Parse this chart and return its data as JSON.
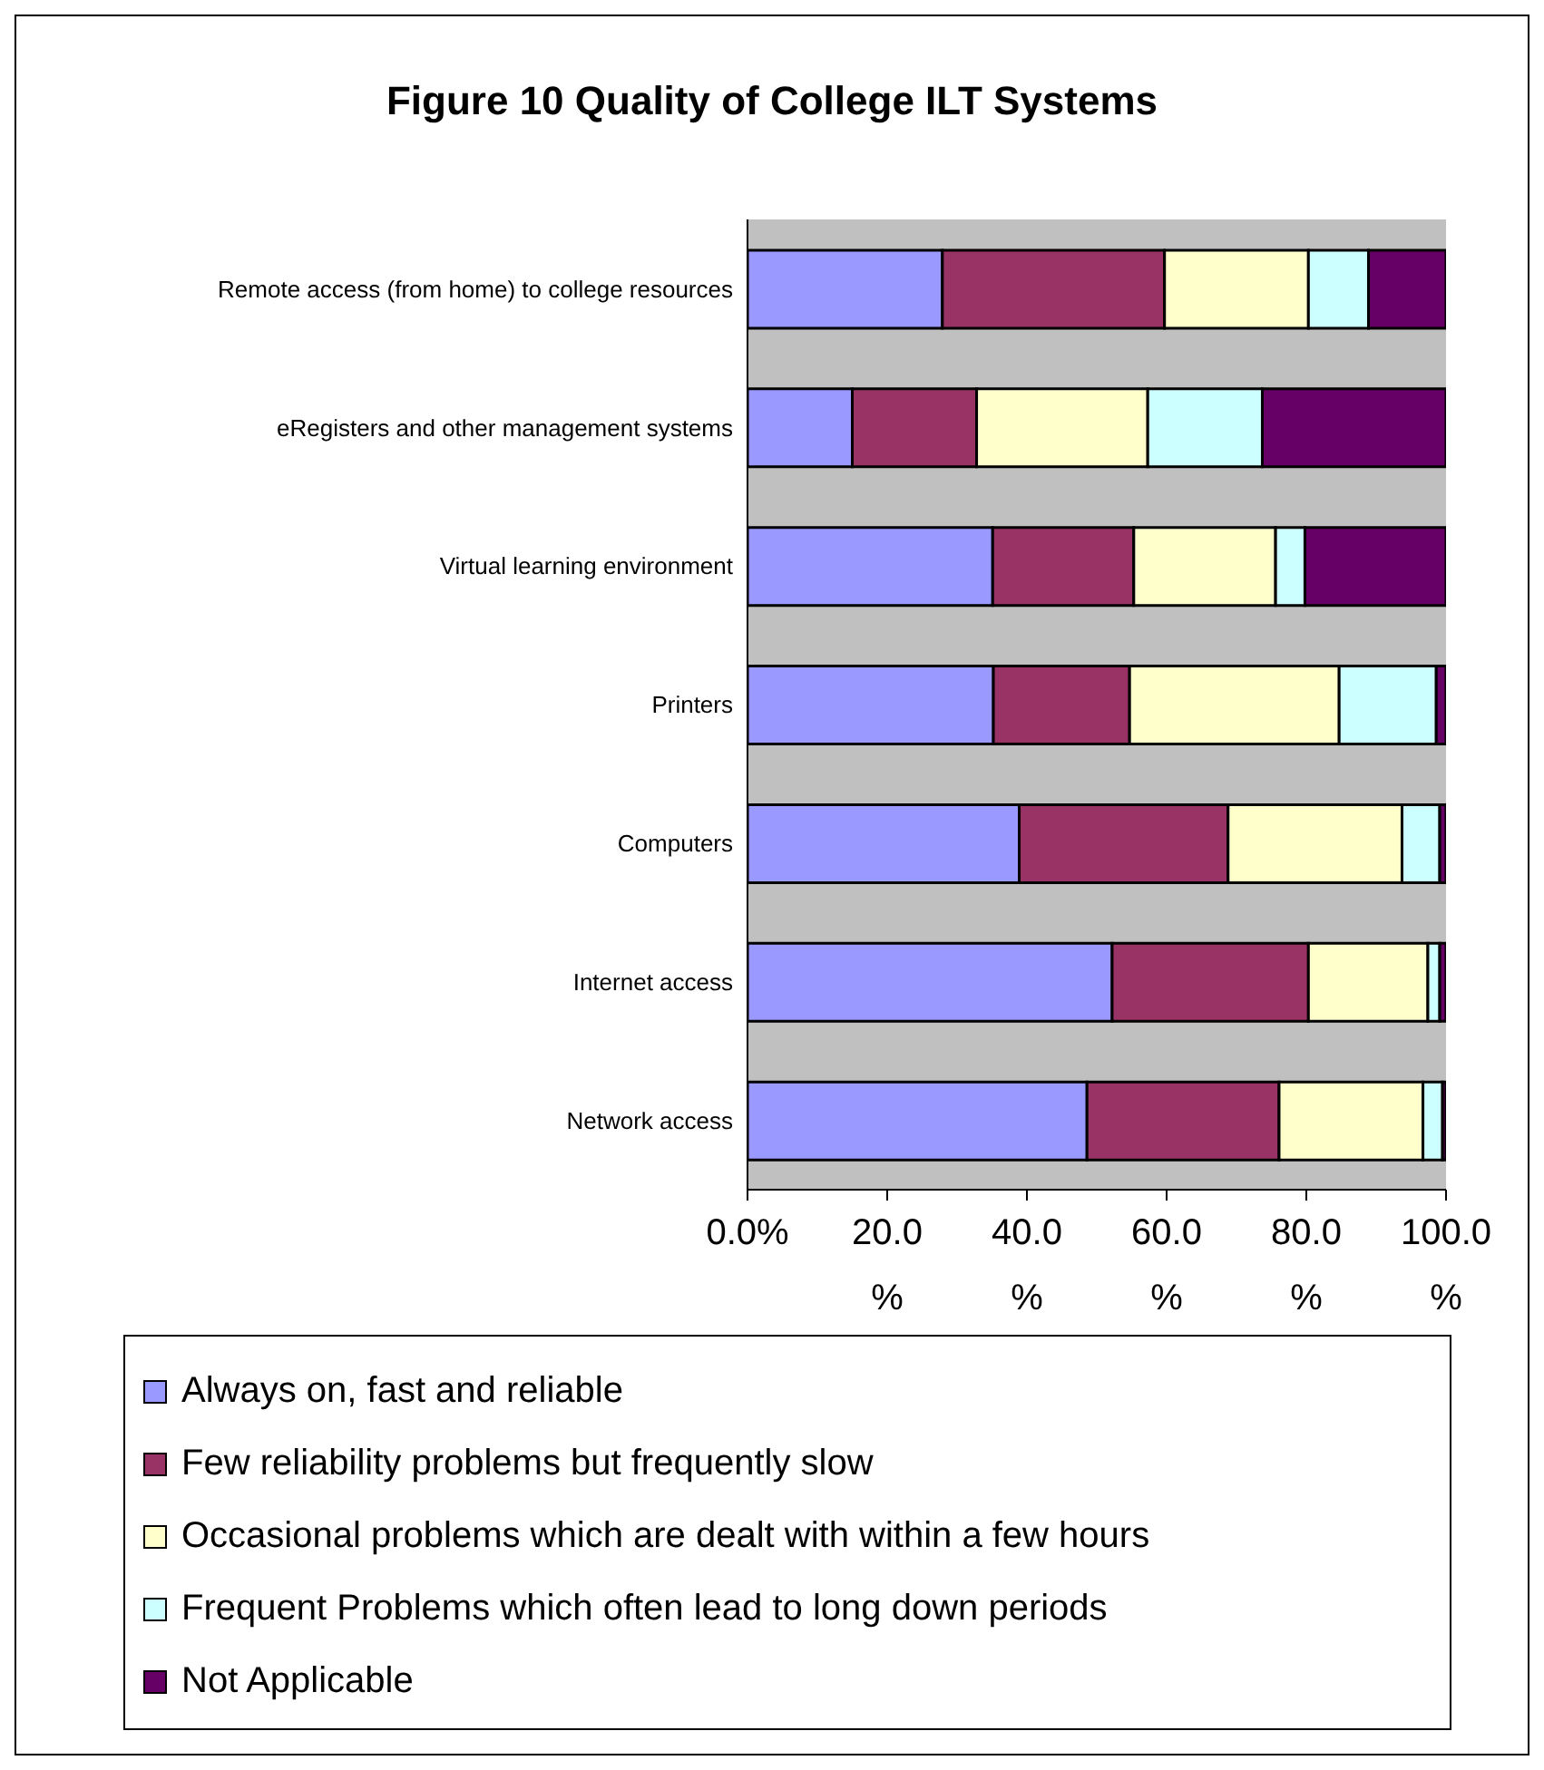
{
  "chart_data": {
    "type": "bar",
    "orientation": "horizontal",
    "stacked": true,
    "title": "Figure 10 Quality of College ILT Systems",
    "categories": [
      "Remote access (from home) to college resources",
      "eRegisters and other management systems",
      "Virtual learning environment",
      "Printers",
      "Computers",
      "Internet access",
      "Network access"
    ],
    "series": [
      {
        "name": "Always on, fast and reliable",
        "color": "#9999ff",
        "values": [
          27.9,
          15.0,
          35.1,
          35.2,
          38.9,
          52.2,
          48.6
        ]
      },
      {
        "name": "Few reliability problems but frequently slow",
        "color": "#993366",
        "values": [
          31.8,
          17.8,
          20.2,
          19.5,
          29.9,
          28.1,
          27.5
        ]
      },
      {
        "name": "Occasional problems which are dealt with within a few hours",
        "color": "#ffffcc",
        "values": [
          20.6,
          24.5,
          20.3,
          30.0,
          24.9,
          17.1,
          20.6
        ]
      },
      {
        "name": "Frequent Problems which often lead to long down periods",
        "color": "#ccffff",
        "values": [
          8.6,
          16.4,
          4.2,
          13.9,
          5.4,
          1.7,
          2.8
        ]
      },
      {
        "name": "Not Applicable",
        "color": "#660066",
        "values": [
          11.1,
          26.3,
          20.2,
          1.4,
          0.9,
          0.9,
          0.5
        ]
      }
    ],
    "xlim": [
      0,
      100
    ],
    "xticks": [
      {
        "value": 0,
        "label": "0.0%"
      },
      {
        "value": 20,
        "label": "20.0%"
      },
      {
        "value": 40,
        "label": "40.0%"
      },
      {
        "value": 60,
        "label": "60.0%"
      },
      {
        "value": 80,
        "label": "80.0%"
      },
      {
        "value": 100,
        "label": "100.0%"
      }
    ],
    "legend": "bottom"
  }
}
